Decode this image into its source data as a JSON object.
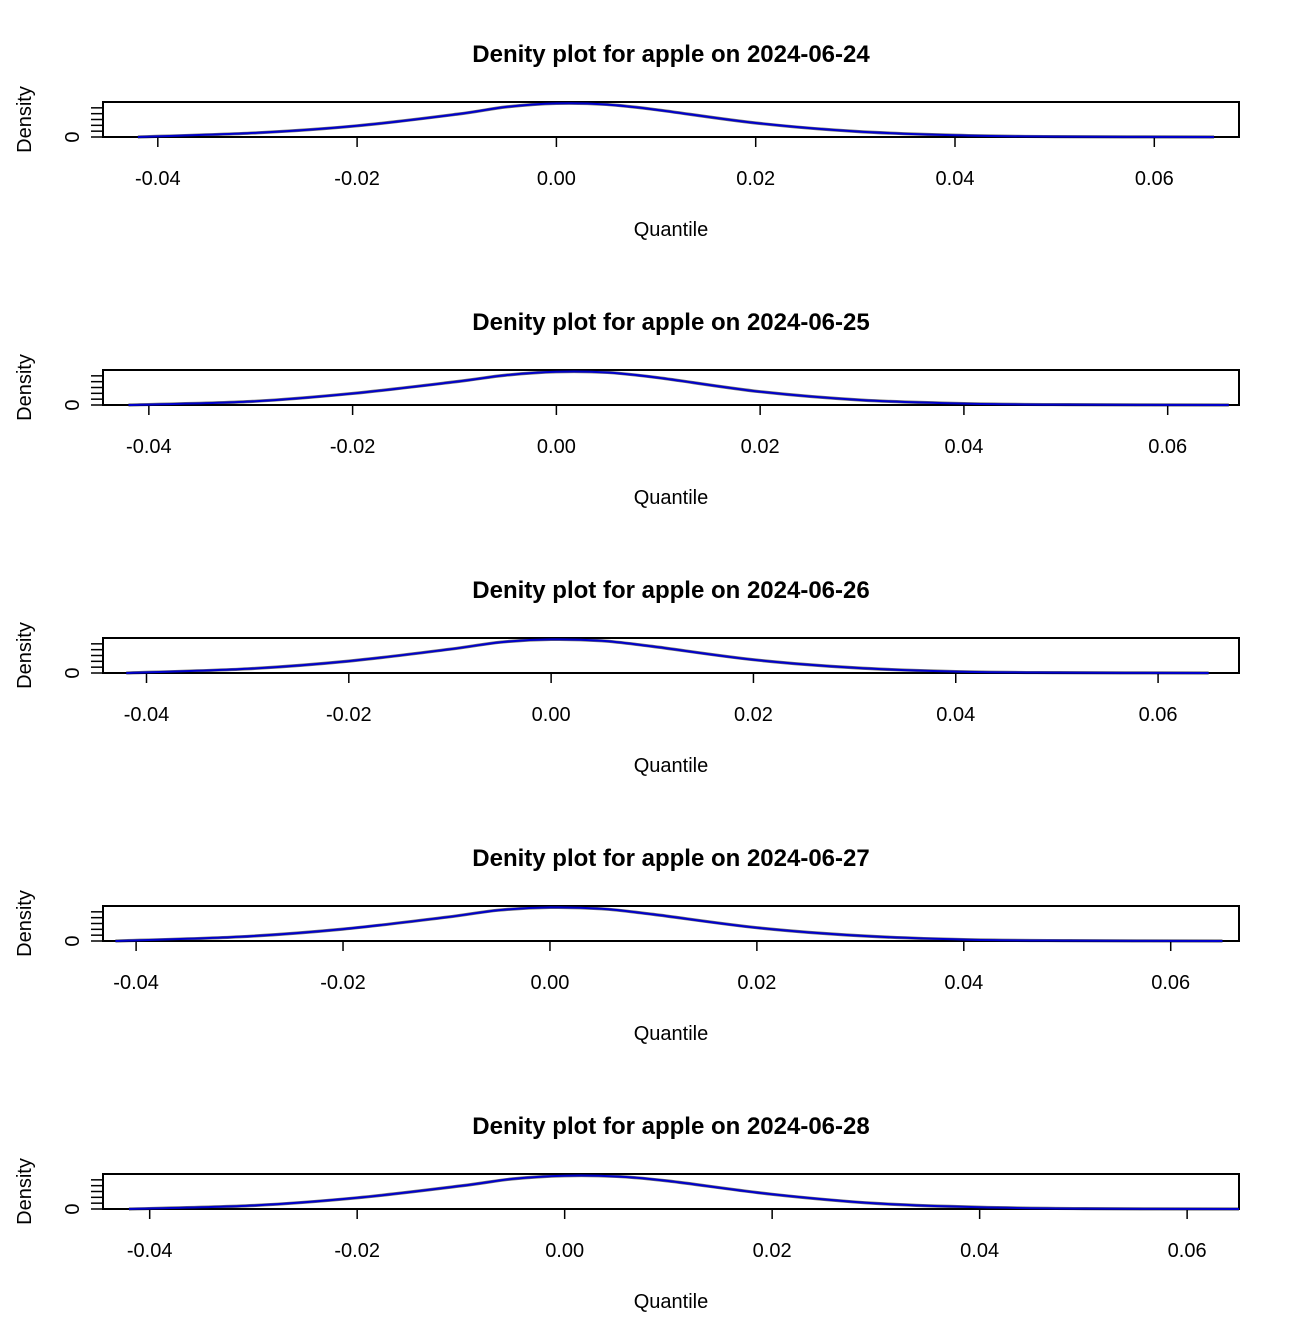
{
  "chart_data": [
    {
      "type": "line",
      "title": "Denity plot for apple on 2024-06-24",
      "xlabel": "Quantile",
      "ylabel": "Density",
      "y_tick_labels": [
        "0"
      ],
      "x_ticks": [
        -0.04,
        -0.02,
        0.0,
        0.02,
        0.04,
        0.06
      ],
      "x_tick_labels": [
        "-0.04",
        "-0.02",
        "0.00",
        "0.02",
        "0.04",
        "0.06"
      ],
      "xlim": [
        -0.0455,
        0.0685
      ],
      "ylim": [
        0,
        1
      ],
      "grid": false,
      "series": [
        {
          "color": "#0000cc",
          "x": [
            -0.042,
            -0.03,
            -0.02,
            -0.01,
            -0.005,
            0.0,
            0.005,
            0.01,
            0.02,
            0.03,
            0.04,
            0.05,
            0.066
          ],
          "y": [
            0.0,
            0.12,
            0.32,
            0.65,
            0.86,
            0.96,
            0.93,
            0.78,
            0.4,
            0.16,
            0.05,
            0.01,
            0.0
          ]
        }
      ]
    },
    {
      "type": "line",
      "title": "Denity plot for apple on 2024-06-25",
      "xlabel": "Quantile",
      "ylabel": "Density",
      "y_tick_labels": [
        "0"
      ],
      "x_ticks": [
        -0.04,
        -0.02,
        0.0,
        0.02,
        0.04,
        0.06
      ],
      "x_tick_labels": [
        "-0.04",
        "-0.02",
        "0.00",
        "0.02",
        "0.04",
        "0.06"
      ],
      "xlim": [
        -0.0445,
        0.067
      ],
      "ylim": [
        0,
        1
      ],
      "grid": false,
      "series": [
        {
          "color": "#0000cc",
          "x": [
            -0.042,
            -0.03,
            -0.02,
            -0.01,
            -0.005,
            0.0,
            0.005,
            0.01,
            0.02,
            0.03,
            0.04,
            0.05,
            0.066
          ],
          "y": [
            0.0,
            0.1,
            0.33,
            0.66,
            0.85,
            0.95,
            0.93,
            0.78,
            0.38,
            0.14,
            0.04,
            0.01,
            0.0
          ]
        }
      ]
    },
    {
      "type": "line",
      "title": "Denity plot for apple on 2024-06-26",
      "xlabel": "Quantile",
      "ylabel": "Density",
      "y_tick_labels": [
        "0"
      ],
      "x_ticks": [
        -0.04,
        -0.02,
        0.0,
        0.02,
        0.04,
        0.06
      ],
      "x_tick_labels": [
        "-0.04",
        "-0.02",
        "0.00",
        "0.02",
        "0.04",
        "0.06"
      ],
      "xlim": [
        -0.0443,
        0.068
      ],
      "ylim": [
        0,
        1
      ],
      "grid": false,
      "series": [
        {
          "color": "#0000cc",
          "x": [
            -0.042,
            -0.03,
            -0.02,
            -0.01,
            -0.005,
            0.0,
            0.005,
            0.01,
            0.02,
            0.03,
            0.04,
            0.05,
            0.065
          ],
          "y": [
            0.0,
            0.12,
            0.34,
            0.68,
            0.88,
            0.96,
            0.92,
            0.76,
            0.38,
            0.15,
            0.04,
            0.01,
            0.0
          ]
        }
      ]
    },
    {
      "type": "line",
      "title": "Denity plot for apple on 2024-06-27",
      "xlabel": "Quantile",
      "ylabel": "Density",
      "y_tick_labels": [
        "0"
      ],
      "x_ticks": [
        -0.04,
        -0.02,
        0.0,
        0.02,
        0.04,
        0.06
      ],
      "x_tick_labels": [
        "-0.04",
        "-0.02",
        "0.00",
        "0.02",
        "0.04",
        "0.06"
      ],
      "xlim": [
        -0.0432,
        0.0666
      ],
      "ylim": [
        0,
        1
      ],
      "grid": false,
      "series": [
        {
          "color": "#0000cc",
          "x": [
            -0.042,
            -0.03,
            -0.02,
            -0.01,
            -0.005,
            0.0,
            0.005,
            0.01,
            0.02,
            0.03,
            0.04,
            0.05,
            0.065
          ],
          "y": [
            0.0,
            0.12,
            0.34,
            0.68,
            0.88,
            0.96,
            0.92,
            0.76,
            0.38,
            0.15,
            0.04,
            0.01,
            0.0
          ]
        }
      ]
    },
    {
      "type": "line",
      "title": "Denity plot for apple on 2024-06-28",
      "xlabel": "Quantile",
      "ylabel": "Density",
      "y_tick_labels": [
        "0"
      ],
      "x_ticks": [
        -0.04,
        -0.02,
        0.0,
        0.02,
        0.04,
        0.06
      ],
      "x_tick_labels": [
        "-0.04",
        "-0.02",
        "0.00",
        "0.02",
        "0.04",
        "0.06"
      ],
      "xlim": [
        -0.0445,
        0.065
      ],
      "ylim": [
        0,
        1
      ],
      "grid": false,
      "series": [
        {
          "color": "#0000cc",
          "x": [
            -0.042,
            -0.03,
            -0.02,
            -0.01,
            -0.005,
            0.0,
            0.005,
            0.01,
            0.02,
            0.03,
            0.04,
            0.05,
            0.065
          ],
          "y": [
            0.0,
            0.1,
            0.32,
            0.66,
            0.86,
            0.95,
            0.93,
            0.8,
            0.42,
            0.16,
            0.05,
            0.01,
            0.0
          ]
        }
      ]
    }
  ]
}
